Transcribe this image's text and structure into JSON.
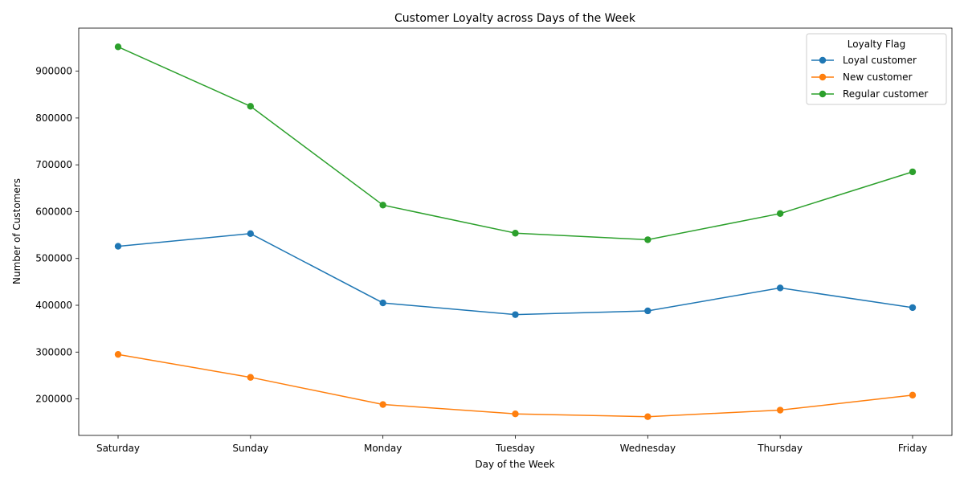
{
  "chart_data": {
    "type": "line",
    "title": "Customer Loyalty across Days of the Week",
    "xlabel": "Day of the Week",
    "ylabel": "Number of Customers",
    "categories": [
      "Saturday",
      "Sunday",
      "Monday",
      "Tuesday",
      "Wednesday",
      "Thursday",
      "Friday"
    ],
    "ylim": [
      122000,
      992000
    ],
    "yticks": [
      200000,
      300000,
      400000,
      500000,
      600000,
      700000,
      800000,
      900000
    ],
    "grid": false,
    "legend": {
      "title": "Loyalty Flag",
      "placement": "top-right"
    },
    "series": [
      {
        "name": "Loyal customer",
        "color": "#1f77b4",
        "values": [
          526000,
          553000,
          405000,
          380000,
          388000,
          437000,
          395000
        ]
      },
      {
        "name": "New customer",
        "color": "#ff7f0e",
        "values": [
          295000,
          246000,
          188000,
          168000,
          162000,
          176000,
          208000
        ]
      },
      {
        "name": "Regular customer",
        "color": "#2ca02c",
        "values": [
          952000,
          825000,
          614000,
          554000,
          540000,
          596000,
          685000
        ]
      }
    ]
  }
}
